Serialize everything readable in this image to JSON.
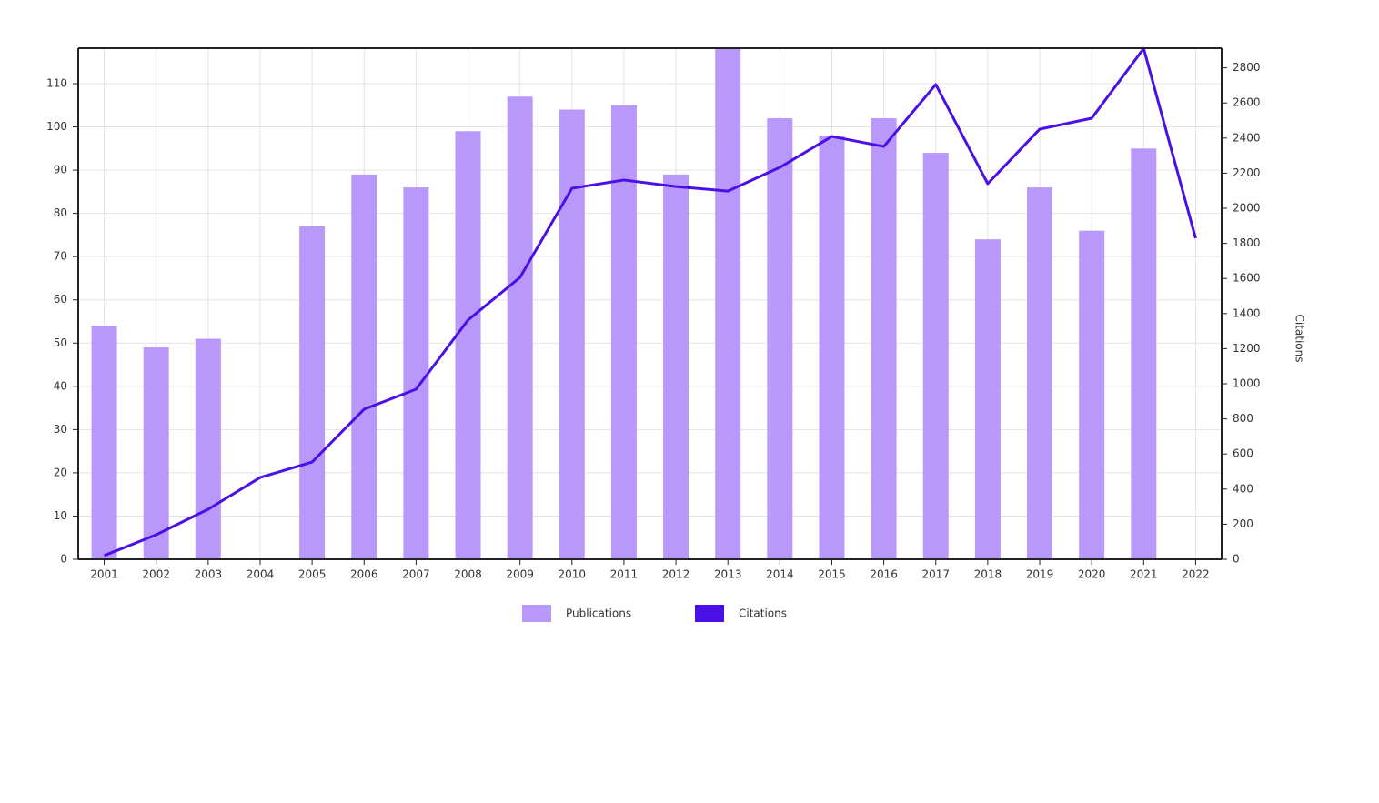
{
  "chart_data": {
    "type": "bar_line",
    "categories": [
      "2001",
      "2002",
      "2003",
      "2004",
      "2005",
      "2006",
      "2007",
      "2008",
      "2009",
      "2010",
      "2011",
      "2012",
      "2013",
      "2014",
      "2015",
      "2016",
      "2017",
      "2018",
      "2019",
      "2020",
      "2021",
      "2022"
    ],
    "series": [
      {
        "name": "Publications",
        "color": "#b899fb",
        "type": "bar",
        "axis": "y",
        "values": [
          54,
          49,
          51,
          0,
          77,
          89,
          86,
          99,
          107,
          104,
          105,
          89,
          118,
          102,
          98,
          102,
          94,
          74,
          86,
          76,
          95,
          null
        ]
      },
      {
        "name": "Citations",
        "color": "#4b10e6",
        "type": "line",
        "axis": "y2",
        "values": [
          21,
          140,
          285,
          466,
          554,
          855,
          969,
          1363,
          1606,
          2114,
          2161,
          2124,
          2098,
          2233,
          2409,
          2352,
          2705,
          2140,
          2451,
          2513,
          2910,
          1829
        ]
      }
    ],
    "ylim": [
      0,
      118.2
    ],
    "yticks": [
      0,
      10,
      20,
      30,
      40,
      50,
      60,
      70,
      80,
      90,
      100,
      110
    ],
    "y2lim": [
      0,
      2912
    ],
    "y2ticks": [
      0,
      200,
      400,
      600,
      800,
      1000,
      1200,
      1400,
      1600,
      1800,
      2000,
      2200,
      2400,
      2600,
      2800
    ],
    "y2_label": "Citations",
    "grid": true,
    "legend": "bottom"
  }
}
